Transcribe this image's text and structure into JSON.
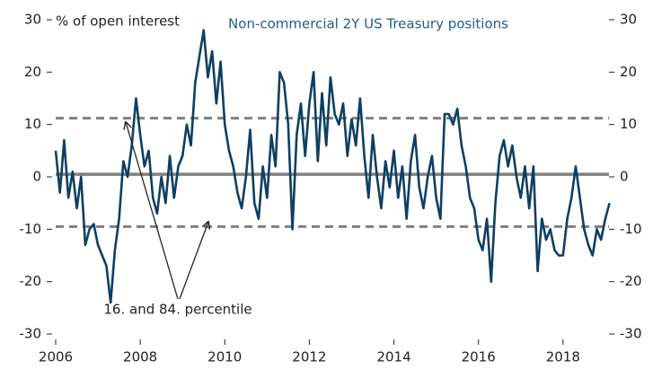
{
  "chart_data": {
    "type": "line",
    "title": "Non-commercial 2Y US Treasury positions",
    "ylabel": "% of open interest",
    "annotation": "16. and 84. percentile",
    "xlim": [
      2006,
      2019.3
    ],
    "xticks": [
      2006,
      2008,
      2010,
      2012,
      2014,
      2016,
      2018
    ],
    "ylim": [
      -30,
      30
    ],
    "yticks": [
      30,
      20,
      10,
      0,
      -10,
      -20,
      -30
    ],
    "y2lim": [
      -30,
      30
    ],
    "y2ticks": [
      30,
      20,
      10,
      0,
      -10,
      -20,
      -30
    ],
    "reference_lines": [
      {
        "value": 0.5,
        "style": "solid"
      },
      {
        "value": 11.2,
        "style": "dashed"
      },
      {
        "value": -9.5,
        "style": "dashed"
      }
    ],
    "x": [
      2006.0,
      2006.1,
      2006.2,
      2006.3,
      2006.4,
      2006.5,
      2006.6,
      2006.7,
      2006.8,
      2006.9,
      2007.0,
      2007.1,
      2007.2,
      2007.3,
      2007.4,
      2007.5,
      2007.6,
      2007.7,
      2007.8,
      2007.9,
      2008.0,
      2008.1,
      2008.2,
      2008.3,
      2008.4,
      2008.5,
      2008.6,
      2008.7,
      2008.8,
      2008.9,
      2009.0,
      2009.1,
      2009.2,
      2009.3,
      2009.4,
      2009.5,
      2009.6,
      2009.7,
      2009.8,
      2009.9,
      2010.0,
      2010.1,
      2010.2,
      2010.3,
      2010.4,
      2010.5,
      2010.6,
      2010.7,
      2010.8,
      2010.9,
      2011.0,
      2011.1,
      2011.2,
      2011.3,
      2011.4,
      2011.5,
      2011.6,
      2011.7,
      2011.8,
      2011.9,
      2012.0,
      2012.1,
      2012.2,
      2012.3,
      2012.4,
      2012.5,
      2012.6,
      2012.7,
      2012.8,
      2012.9,
      2013.0,
      2013.1,
      2013.2,
      2013.3,
      2013.4,
      2013.5,
      2013.6,
      2013.7,
      2013.8,
      2013.9,
      2014.0,
      2014.1,
      2014.2,
      2014.3,
      2014.4,
      2014.5,
      2014.6,
      2014.7,
      2014.8,
      2014.9,
      2015.0,
      2015.1,
      2015.2,
      2015.3,
      2015.4,
      2015.5,
      2015.6,
      2015.7,
      2015.8,
      2015.9,
      2016.0,
      2016.1,
      2016.2,
      2016.3,
      2016.4,
      2016.5,
      2016.6,
      2016.7,
      2016.8,
      2016.9,
      2017.0,
      2017.1,
      2017.2,
      2017.3,
      2017.4,
      2017.5,
      2017.6,
      2017.7,
      2017.8,
      2017.9,
      2018.0,
      2018.1,
      2018.2,
      2018.3,
      2018.4,
      2018.5,
      2018.6,
      2018.7,
      2018.8,
      2018.9,
      2019.0,
      2019.1
    ],
    "series": [
      {
        "color": "#0d3f63",
        "values": [
          5,
          -3,
          7,
          -4,
          1,
          -6,
          0,
          -13,
          -10,
          -9,
          -13,
          -15,
          -17,
          -24,
          -14,
          -8,
          3,
          0,
          6,
          15,
          8,
          2,
          5,
          -4,
          -7,
          0,
          -5,
          4,
          -4,
          2,
          4,
          10,
          6,
          18,
          23,
          28,
          19,
          24,
          14,
          22,
          10,
          5,
          2,
          -3,
          -6,
          0,
          9,
          -5,
          -8,
          2,
          -4,
          8,
          2,
          20,
          18,
          10,
          -10,
          8,
          14,
          4,
          14,
          20,
          3,
          16,
          6,
          19,
          12,
          10,
          14,
          4,
          11,
          6,
          15,
          4,
          -4,
          8,
          0,
          -6,
          3,
          -2,
          5,
          -4,
          2,
          -8,
          3,
          8,
          -2,
          -6,
          0,
          4,
          -4,
          -8,
          12,
          12,
          10,
          13,
          6,
          2,
          -4,
          -6,
          -12,
          -14,
          -8,
          -20,
          -5,
          4,
          7,
          2,
          6,
          0,
          -4,
          2,
          -6,
          2,
          -18,
          -8,
          -12,
          -10,
          -14,
          -15,
          -15,
          -8,
          -4,
          2,
          -4,
          -10,
          -13,
          -15,
          -10,
          -12,
          -8,
          -5
        ]
      }
    ]
  }
}
